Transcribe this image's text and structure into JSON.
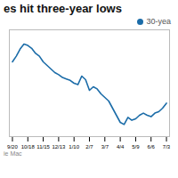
{
  "chart_data": {
    "type": "line",
    "title": "es hit three-year lows",
    "caption": "ie Mac",
    "x": [
      0,
      0.25,
      0.5,
      0.75,
      1,
      1.25,
      1.5,
      1.75,
      2,
      2.25,
      2.5,
      2.75,
      3,
      3.25,
      3.5,
      3.75,
      4,
      4.25,
      4.5,
      4.75,
      5,
      5.25,
      5.5,
      5.75,
      6,
      6.25,
      6.5,
      6.75,
      7,
      7.25,
      7.5,
      7.75,
      8,
      8.25,
      8.5,
      8.75,
      9,
      9.25,
      9.5,
      9.75,
      10
    ],
    "series": [
      {
        "name": "30-yea",
        "color": "#1b6ca8",
        "values": [
          3.6,
          3.68,
          3.78,
          3.85,
          3.83,
          3.79,
          3.72,
          3.68,
          3.6,
          3.55,
          3.5,
          3.45,
          3.42,
          3.38,
          3.36,
          3.34,
          3.3,
          3.28,
          3.4,
          3.35,
          3.2,
          3.25,
          3.22,
          3.15,
          3.1,
          3.05,
          2.95,
          2.85,
          2.75,
          2.72,
          2.82,
          2.78,
          2.8,
          2.85,
          2.88,
          2.85,
          2.83,
          2.88,
          2.9,
          2.95,
          3.02
        ]
      }
    ],
    "xlim": [
      -0.2,
      10.2
    ],
    "xticks": [
      {
        "value": 0,
        "label": "9/20"
      },
      {
        "value": 1,
        "label": "10/18"
      },
      {
        "value": 2,
        "label": "11/15"
      },
      {
        "value": 3,
        "label": "12/13"
      },
      {
        "value": 4,
        "label": "1/10"
      },
      {
        "value": 5,
        "label": "2/7"
      },
      {
        "value": 6,
        "label": "3/7"
      },
      {
        "value": 7,
        "label": "4/4"
      },
      {
        "value": 8,
        "label": "5/9"
      },
      {
        "value": 9,
        "label": "6/6"
      },
      {
        "value": 10,
        "label": "7/3"
      }
    ],
    "ylim": [
      2.55,
      4.05
    ],
    "tick_labels": "x",
    "grid": false,
    "legend": "upper right"
  }
}
